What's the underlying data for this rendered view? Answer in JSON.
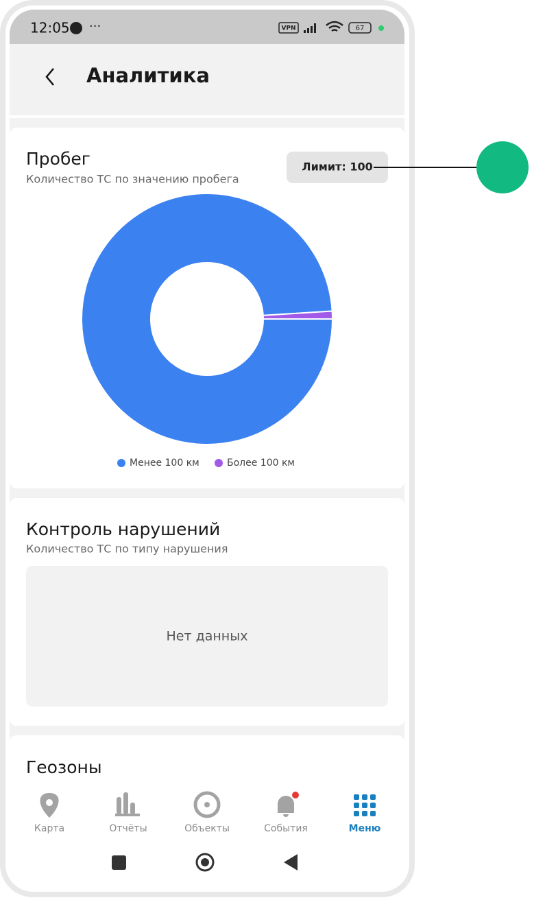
{
  "status_bar": {
    "time": "12:05",
    "vpn": "VPN",
    "battery": "67"
  },
  "header": {
    "title": "Аналитика"
  },
  "chart_data": {
    "type": "pie",
    "title": "Пробег",
    "subtitle": "Количество ТС по значению пробега",
    "limit_button": "Лимит: 100",
    "categories": [
      "Менее 100 км",
      "Более 100 км"
    ],
    "values": [
      99,
      1
    ],
    "colors": [
      "#3b82f0",
      "#a25ae8"
    ],
    "donut": true
  },
  "violations": {
    "title": "Контроль нарушений",
    "subtitle": "Количество ТС по типу нарушения",
    "empty": "Нет данных"
  },
  "geozones": {
    "title": "Геозоны"
  },
  "nav": {
    "items": [
      "Карта",
      "Отчёты",
      "Объекты",
      "События",
      "Меню"
    ]
  }
}
